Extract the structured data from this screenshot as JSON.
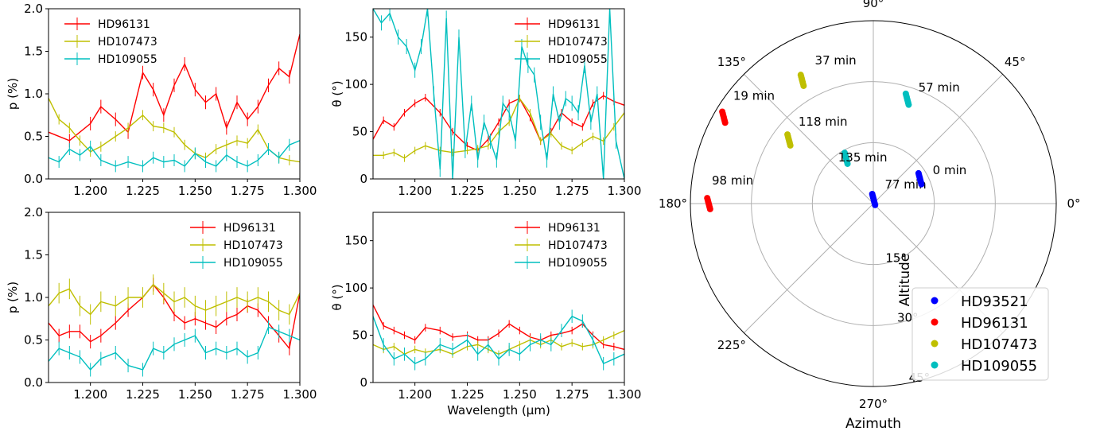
{
  "colors": {
    "HD93521": "#0000ff",
    "HD96131": "#ff0000",
    "HD107473": "#bfbf00",
    "HD109055": "#00bfbf",
    "grid": "#b0b0b0"
  },
  "chart_data": [
    {
      "type": "line",
      "xlabel": "",
      "ylabel": "p (%)",
      "xlim": [
        1.18,
        1.3
      ],
      "ylim": [
        0,
        2.0
      ],
      "xticks": [
        "1.200",
        "1.225",
        "1.250",
        "1.275",
        "1.300"
      ],
      "yticks": [
        "0.0",
        "0.5",
        "1.0",
        "1.5",
        "2.0"
      ],
      "legend": "top-left",
      "error_bars": true,
      "series": [
        {
          "name": "HD96131",
          "color": "#ff0000",
          "x": [
            1.18,
            1.19,
            1.2,
            1.205,
            1.212,
            1.218,
            1.225,
            1.23,
            1.235,
            1.24,
            1.245,
            1.25,
            1.255,
            1.26,
            1.265,
            1.27,
            1.275,
            1.28,
            1.285,
            1.29,
            1.295,
            1.3
          ],
          "y": [
            0.55,
            0.45,
            0.65,
            0.85,
            0.7,
            0.55,
            1.25,
            1.05,
            0.75,
            1.1,
            1.35,
            1.05,
            0.9,
            1.0,
            0.6,
            0.9,
            0.7,
            0.85,
            1.1,
            1.3,
            1.2,
            1.7
          ],
          "err": 0.08
        },
        {
          "name": "HD107473",
          "color": "#bfbf00",
          "x": [
            1.18,
            1.185,
            1.19,
            1.195,
            1.2,
            1.205,
            1.212,
            1.218,
            1.225,
            1.23,
            1.235,
            1.24,
            1.245,
            1.25,
            1.255,
            1.26,
            1.265,
            1.27,
            1.275,
            1.28,
            1.285,
            1.29,
            1.295,
            1.3
          ],
          "y": [
            0.95,
            0.7,
            0.6,
            0.45,
            0.32,
            0.38,
            0.5,
            0.6,
            0.75,
            0.62,
            0.6,
            0.55,
            0.4,
            0.3,
            0.25,
            0.35,
            0.4,
            0.45,
            0.42,
            0.58,
            0.35,
            0.25,
            0.22,
            0.2
          ],
          "err": 0.06
        },
        {
          "name": "HD109055",
          "color": "#00bfbf",
          "x": [
            1.18,
            1.185,
            1.19,
            1.195,
            1.2,
            1.205,
            1.212,
            1.218,
            1.225,
            1.23,
            1.235,
            1.24,
            1.245,
            1.25,
            1.255,
            1.26,
            1.265,
            1.27,
            1.275,
            1.28,
            1.285,
            1.29,
            1.295,
            1.3
          ],
          "y": [
            0.25,
            0.2,
            0.35,
            0.28,
            0.38,
            0.22,
            0.15,
            0.2,
            0.15,
            0.25,
            0.2,
            0.22,
            0.15,
            0.3,
            0.2,
            0.15,
            0.28,
            0.2,
            0.15,
            0.22,
            0.35,
            0.25,
            0.4,
            0.45
          ],
          "err": 0.07
        }
      ]
    },
    {
      "type": "line",
      "xlabel": "",
      "ylabel": "θ (°)",
      "xlim": [
        1.18,
        1.3
      ],
      "ylim": [
        0,
        180
      ],
      "xticks": [
        "1.200",
        "1.225",
        "1.250",
        "1.275",
        "1.300"
      ],
      "yticks": [
        "0",
        "50",
        "100",
        "150"
      ],
      "legend": "top-right",
      "error_bars": true,
      "series": [
        {
          "name": "HD96131",
          "color": "#ff0000",
          "x": [
            1.18,
            1.185,
            1.19,
            1.195,
            1.2,
            1.205,
            1.212,
            1.218,
            1.225,
            1.23,
            1.235,
            1.24,
            1.245,
            1.25,
            1.255,
            1.26,
            1.265,
            1.27,
            1.275,
            1.28,
            1.285,
            1.29,
            1.295,
            1.3
          ],
          "y": [
            42,
            62,
            55,
            70,
            80,
            86,
            70,
            50,
            35,
            30,
            42,
            60,
            80,
            85,
            65,
            40,
            50,
            70,
            60,
            55,
            80,
            88,
            82,
            78
          ],
          "err": 4
        },
        {
          "name": "HD107473",
          "color": "#bfbf00",
          "x": [
            1.18,
            1.185,
            1.19,
            1.195,
            1.2,
            1.205,
            1.212,
            1.218,
            1.225,
            1.23,
            1.235,
            1.24,
            1.245,
            1.25,
            1.255,
            1.26,
            1.265,
            1.27,
            1.275,
            1.28,
            1.285,
            1.29,
            1.295,
            1.3
          ],
          "y": [
            25,
            25,
            28,
            22,
            30,
            35,
            30,
            28,
            30,
            32,
            35,
            50,
            60,
            85,
            70,
            40,
            48,
            35,
            30,
            38,
            45,
            40,
            55,
            70
          ],
          "err": 4
        },
        {
          "name": "HD109055",
          "color": "#00bfbf",
          "x": [
            1.18,
            1.184,
            1.188,
            1.192,
            1.196,
            1.2,
            1.203,
            1.206,
            1.209,
            1.212,
            1.215,
            1.218,
            1.221,
            1.224,
            1.227,
            1.23,
            1.233,
            1.236,
            1.239,
            1.242,
            1.245,
            1.248,
            1.251,
            1.254,
            1.257,
            1.26,
            1.263,
            1.266,
            1.269,
            1.272,
            1.275,
            1.278,
            1.281,
            1.284,
            1.287,
            1.29,
            1.293,
            1.296,
            1.3
          ],
          "y": [
            180,
            165,
            175,
            150,
            140,
            115,
            140,
            180,
            90,
            10,
            170,
            0,
            150,
            30,
            80,
            20,
            60,
            40,
            20,
            80,
            70,
            40,
            140,
            120,
            110,
            60,
            20,
            90,
            60,
            85,
            80,
            70,
            120,
            60,
            90,
            0,
            180,
            40,
            0
          ],
          "err": 8
        }
      ]
    },
    {
      "type": "line",
      "xlabel": "",
      "ylabel": "p (%)",
      "xlim": [
        1.18,
        1.3
      ],
      "ylim": [
        0,
        2.0
      ],
      "xticks": [
        "1.200",
        "1.225",
        "1.250",
        "1.275",
        "1.300"
      ],
      "yticks": [
        "0.0",
        "0.5",
        "1.0",
        "1.5",
        "2.0"
      ],
      "legend": "top-right",
      "error_bars": true,
      "series": [
        {
          "name": "HD96131",
          "color": "#ff0000",
          "x": [
            1.18,
            1.185,
            1.19,
            1.195,
            1.2,
            1.205,
            1.212,
            1.218,
            1.225,
            1.23,
            1.235,
            1.24,
            1.245,
            1.25,
            1.255,
            1.26,
            1.265,
            1.27,
            1.275,
            1.28,
            1.285,
            1.29,
            1.295,
            1.3
          ],
          "y": [
            0.7,
            0.55,
            0.6,
            0.6,
            0.48,
            0.55,
            0.7,
            0.85,
            1.0,
            1.15,
            1.0,
            0.8,
            0.7,
            0.75,
            0.7,
            0.65,
            0.75,
            0.8,
            0.9,
            0.85,
            0.7,
            0.55,
            0.4,
            1.05
          ],
          "err": 0.08
        },
        {
          "name": "HD107473",
          "color": "#bfbf00",
          "x": [
            1.18,
            1.185,
            1.19,
            1.195,
            1.2,
            1.205,
            1.212,
            1.218,
            1.225,
            1.23,
            1.235,
            1.24,
            1.245,
            1.25,
            1.255,
            1.26,
            1.265,
            1.27,
            1.275,
            1.28,
            1.285,
            1.29,
            1.295,
            1.3
          ],
          "y": [
            0.9,
            1.05,
            1.1,
            0.9,
            0.8,
            0.95,
            0.9,
            1.0,
            1.0,
            1.15,
            1.05,
            0.95,
            1.0,
            0.9,
            0.85,
            0.9,
            0.95,
            1.0,
            0.95,
            1.0,
            0.95,
            0.85,
            0.8,
            1.05
          ],
          "err": 0.12
        },
        {
          "name": "HD109055",
          "color": "#00bfbf",
          "x": [
            1.18,
            1.185,
            1.19,
            1.195,
            1.2,
            1.205,
            1.212,
            1.218,
            1.225,
            1.23,
            1.235,
            1.24,
            1.245,
            1.25,
            1.255,
            1.26,
            1.265,
            1.27,
            1.275,
            1.28,
            1.285,
            1.29,
            1.295,
            1.3
          ],
          "y": [
            0.25,
            0.4,
            0.35,
            0.3,
            0.15,
            0.28,
            0.35,
            0.2,
            0.15,
            0.4,
            0.35,
            0.45,
            0.5,
            0.55,
            0.35,
            0.4,
            0.35,
            0.4,
            0.3,
            0.35,
            0.65,
            0.6,
            0.55,
            0.5
          ],
          "err": 0.08
        }
      ]
    },
    {
      "type": "line",
      "xlabel": "Wavelength (μm)",
      "ylabel": "θ (°)",
      "xlim": [
        1.18,
        1.3
      ],
      "ylim": [
        0,
        180
      ],
      "xticks": [
        "1.200",
        "1.225",
        "1.250",
        "1.275",
        "1.300"
      ],
      "yticks": [
        "0",
        "50",
        "100",
        "150"
      ],
      "legend": "top-right",
      "error_bars": true,
      "series": [
        {
          "name": "HD96131",
          "color": "#ff0000",
          "x": [
            1.18,
            1.185,
            1.19,
            1.195,
            1.2,
            1.205,
            1.212,
            1.218,
            1.225,
            1.23,
            1.235,
            1.24,
            1.245,
            1.25,
            1.255,
            1.26,
            1.265,
            1.27,
            1.275,
            1.28,
            1.285,
            1.29,
            1.295,
            1.3
          ],
          "y": [
            82,
            60,
            55,
            50,
            45,
            58,
            55,
            48,
            50,
            45,
            45,
            52,
            62,
            55,
            48,
            45,
            50,
            52,
            55,
            62,
            50,
            40,
            38,
            35
          ],
          "err": 4
        },
        {
          "name": "HD107473",
          "color": "#bfbf00",
          "x": [
            1.18,
            1.185,
            1.19,
            1.195,
            1.2,
            1.205,
            1.212,
            1.218,
            1.225,
            1.23,
            1.235,
            1.24,
            1.245,
            1.25,
            1.255,
            1.26,
            1.265,
            1.27,
            1.275,
            1.28,
            1.285,
            1.29,
            1.295,
            1.3
          ],
          "y": [
            40,
            35,
            38,
            30,
            35,
            32,
            35,
            30,
            38,
            40,
            35,
            30,
            35,
            40,
            45,
            40,
            45,
            38,
            42,
            38,
            40,
            45,
            50,
            55
          ],
          "err": 4
        },
        {
          "name": "HD109055",
          "color": "#00bfbf",
          "x": [
            1.18,
            1.185,
            1.19,
            1.195,
            1.2,
            1.205,
            1.212,
            1.218,
            1.225,
            1.23,
            1.235,
            1.24,
            1.245,
            1.25,
            1.255,
            1.26,
            1.265,
            1.27,
            1.275,
            1.28,
            1.285,
            1.29,
            1.295,
            1.3
          ],
          "y": [
            70,
            40,
            25,
            30,
            20,
            25,
            40,
            35,
            45,
            30,
            40,
            25,
            35,
            30,
            40,
            45,
            40,
            55,
            70,
            65,
            45,
            20,
            25,
            30
          ],
          "err": 7
        }
      ]
    },
    {
      "type": "scatter",
      "subtype": "polar",
      "xlabel": "Azimuth",
      "ylabel": "Altitude",
      "angle_labels": [
        "0°",
        "45°",
        "90°",
        "135°",
        "180°",
        "225°",
        "270°"
      ],
      "radial_labels": [
        "15°",
        "30°",
        "45°"
      ],
      "r_max": 90,
      "grid": true,
      "legend": "bottom-right",
      "series": [
        {
          "name": "HD93521",
          "color": "#0000ff",
          "points": [
            {
              "az": 85,
              "alt": 2,
              "label": "77 min"
            },
            {
              "az": 28,
              "alt": 26,
              "label": "0 min"
            }
          ]
        },
        {
          "name": "HD96131",
          "color": "#ff0000",
          "points": [
            {
              "az": 180,
              "alt": 81,
              "label": "98 min"
            },
            {
              "az": 150,
              "alt": 85,
              "label": "19 min"
            }
          ]
        },
        {
          "name": "HD107473",
          "color": "#bfbf00",
          "points": [
            {
              "az": 143,
              "alt": 52,
              "label": "118 min"
            },
            {
              "az": 120,
              "alt": 70,
              "label": "37 min"
            }
          ]
        },
        {
          "name": "HD109055",
          "color": "#00bfbf",
          "points": [
            {
              "az": 121,
              "alt": 26,
              "label": "135 min"
            },
            {
              "az": 72,
              "alt": 54,
              "label": "57 min"
            }
          ]
        }
      ]
    }
  ]
}
